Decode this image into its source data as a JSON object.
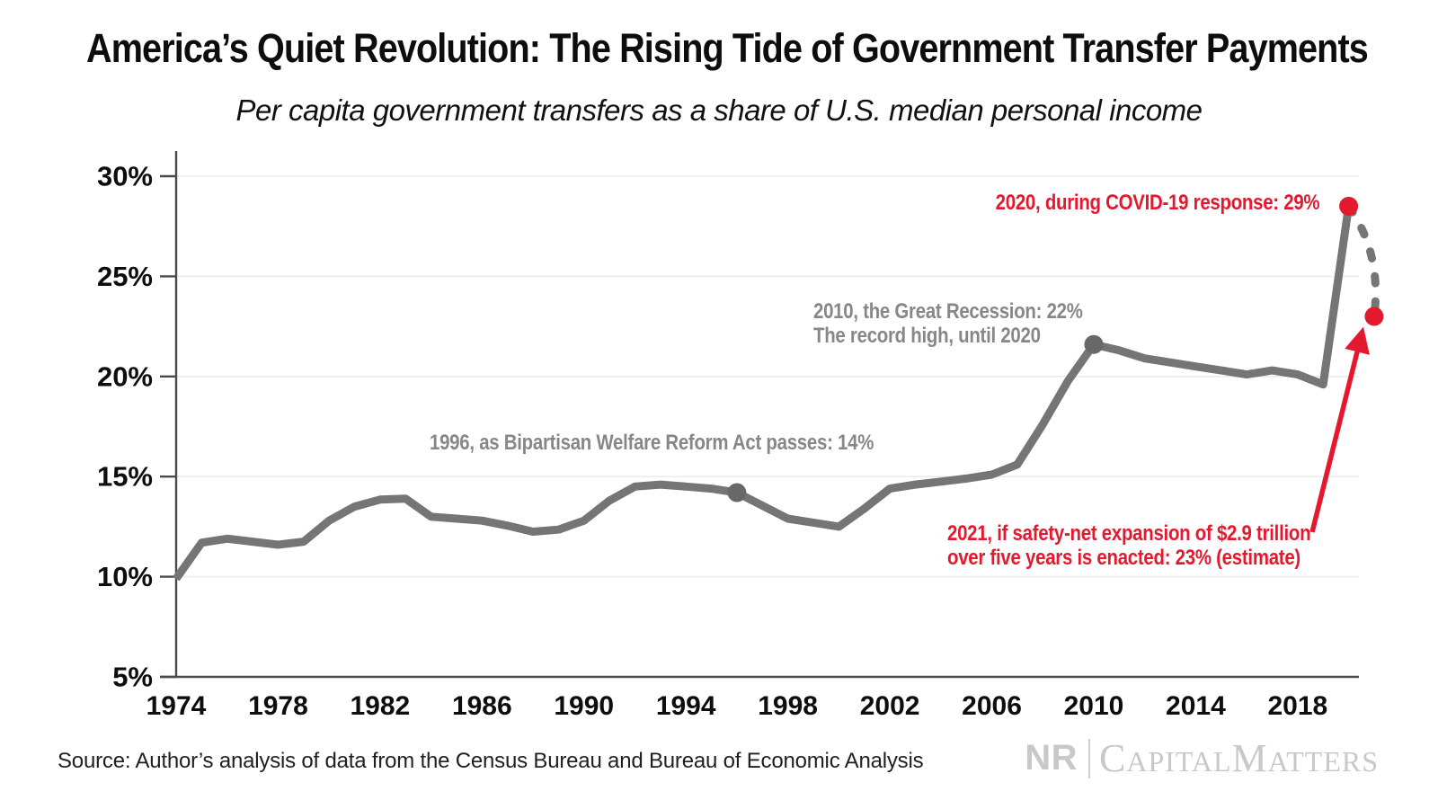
{
  "header": {
    "title": "America’s Quiet Revolution: The Rising Tide of Government Transfer Payments",
    "subtitle": "Per capita government transfers as a share of U.S. median personal income"
  },
  "chart_data": {
    "type": "line",
    "title": "America’s Quiet Revolution: The Rising Tide of Government Transfer Payments",
    "subtitle": "Per capita government transfers as a share of U.S. median personal income",
    "x_start_year": 1974,
    "x_end_year": 2021,
    "values_pct": [
      9.9,
      11.7,
      11.9,
      11.75,
      11.6,
      11.75,
      12.8,
      13.5,
      13.85,
      13.9,
      13.0,
      12.9,
      12.8,
      12.55,
      12.25,
      12.35,
      12.8,
      13.8,
      14.5,
      14.6,
      14.5,
      14.4,
      14.2,
      13.55,
      12.9,
      12.7,
      12.5,
      13.4,
      14.4,
      14.6,
      14.75,
      14.9,
      15.1,
      15.6,
      17.6,
      19.8,
      21.6,
      21.3,
      20.9,
      20.7,
      20.5,
      20.3,
      20.1,
      20.3,
      20.1,
      19.6,
      28.5,
      23.0
    ],
    "solid_through_year": 2020,
    "dashed_segment": {
      "from_year": 2020,
      "to_year": 2021,
      "note": "estimate"
    },
    "ylim": [
      5,
      30
    ],
    "ytick_values": [
      5,
      10,
      15,
      20,
      25,
      30
    ],
    "ytick_labels": [
      "5%",
      "10%",
      "15%",
      "20%",
      "25%",
      "30%"
    ],
    "xtick_values": [
      1974,
      1978,
      1982,
      1986,
      1990,
      1994,
      1998,
      2002,
      2006,
      2010,
      2014,
      2018
    ],
    "xtick_labels": [
      "1974",
      "1978",
      "1982",
      "1986",
      "1990",
      "1994",
      "1998",
      "2002",
      "2006",
      "2010",
      "2014",
      "2018"
    ],
    "grid": "horizontal",
    "legend": "none",
    "colors": {
      "line": "#757575",
      "marker_gray": "#686868",
      "marker_red": "#e5192d",
      "grid": "#ececec",
      "axis": "#4a4a4a",
      "tick_text": "#0d0d0d"
    },
    "markers": [
      {
        "year": 1996,
        "value_pct": 14.2,
        "color_key": "marker_gray"
      },
      {
        "year": 2010,
        "value_pct": 21.6,
        "color_key": "marker_gray"
      },
      {
        "year": 2020,
        "value_pct": 28.5,
        "color_key": "marker_red"
      },
      {
        "year": 2021,
        "value_pct": 23.0,
        "color_key": "marker_red"
      }
    ],
    "annotations": [
      {
        "id": "ann-1996",
        "color": "gray",
        "lines": [
          "1996, as Bipartisan Welfare Reform Act passes: 14%"
        ]
      },
      {
        "id": "ann-2010",
        "color": "gray",
        "lines": [
          "2010, the Great Recession: 22%",
          "The record high, until 2020"
        ]
      },
      {
        "id": "ann-2020",
        "color": "red",
        "lines": [
          "2020, during COVID-19 response: 29%"
        ]
      },
      {
        "id": "ann-2021",
        "color": "red",
        "lines": [
          "2021, if safety-net expansion of $2.9 trillion",
          "over five years is enacted: 23% (estimate)"
        ]
      }
    ]
  },
  "footer": {
    "source": "Source: Author’s analysis of data from the Census Bureau and Bureau of Economic Analysis",
    "logo": {
      "nr": "NR",
      "brand_cap_1": "C",
      "brand_small_1": "APITAL",
      "brand_cap_2": "M",
      "brand_small_2": "ATTERS"
    }
  }
}
